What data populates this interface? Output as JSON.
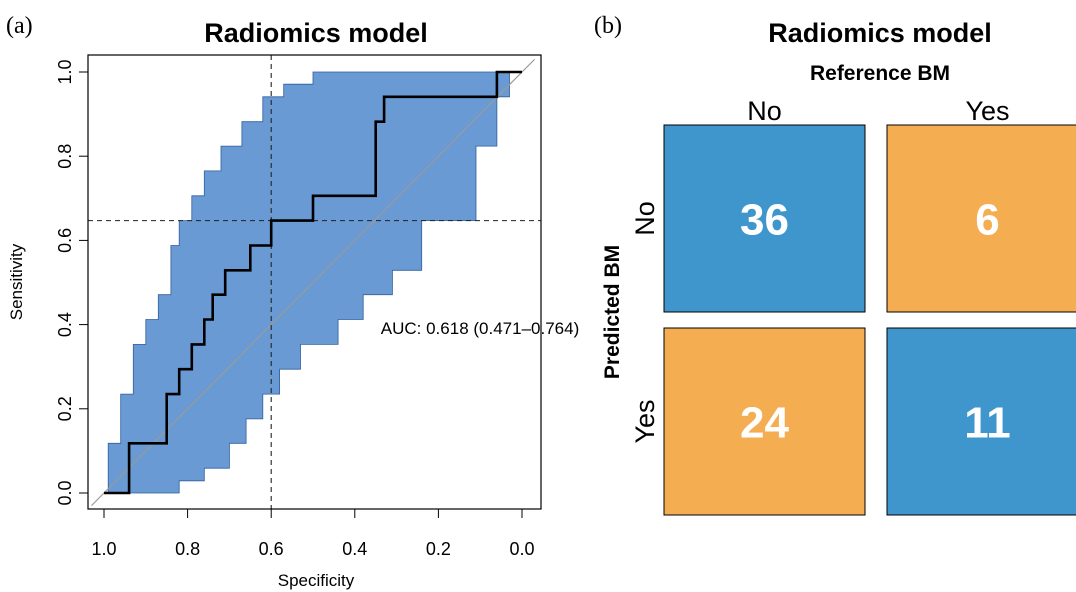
{
  "panel_labels": {
    "a": "(a)",
    "b": "(b)"
  },
  "colors": {
    "roc_band": "#6a9ad3",
    "roc_band_edge": "#2f5f9e",
    "cm_correct": "#3f96cd",
    "cm_incorrect": "#f5ad52"
  },
  "chart_data": [
    {
      "type": "line",
      "title": "Radiomics model",
      "xlabel": "Specificity",
      "ylabel": "Sensitivity",
      "x_reversed": true,
      "xlim": [
        1.0,
        0.0
      ],
      "ylim": [
        0.0,
        1.0
      ],
      "x_ticks": [
        "1.0",
        "0.8",
        "0.6",
        "0.4",
        "0.2",
        "0.0"
      ],
      "y_ticks": [
        "0.0",
        "0.2",
        "0.4",
        "0.6",
        "0.8",
        "1.0"
      ],
      "annotation": "AUC: 0.618 (0.471–0.764)",
      "threshold": {
        "specificity": 0.6,
        "sensitivity": 0.647
      },
      "diagonal": true,
      "roc_curve": {
        "specificity": [
          1.0,
          0.94,
          0.94,
          0.85,
          0.85,
          0.82,
          0.82,
          0.79,
          0.79,
          0.76,
          0.76,
          0.74,
          0.74,
          0.71,
          0.71,
          0.65,
          0.65,
          0.6,
          0.6,
          0.5,
          0.5,
          0.35,
          0.35,
          0.33,
          0.33,
          0.06,
          0.06,
          0.0
        ],
        "sensitivity": [
          0.0,
          0.0,
          0.118,
          0.118,
          0.235,
          0.235,
          0.294,
          0.294,
          0.353,
          0.353,
          0.412,
          0.412,
          0.471,
          0.471,
          0.529,
          0.529,
          0.588,
          0.588,
          0.647,
          0.647,
          0.706,
          0.706,
          0.882,
          0.882,
          0.941,
          0.941,
          1.0,
          1.0
        ]
      },
      "ci_upper": {
        "specificity": [
          0.99,
          0.99,
          0.96,
          0.96,
          0.93,
          0.93,
          0.9,
          0.9,
          0.87,
          0.87,
          0.84,
          0.84,
          0.82,
          0.82,
          0.79,
          0.79,
          0.76,
          0.76,
          0.72,
          0.72,
          0.67,
          0.67,
          0.62,
          0.62,
          0.57,
          0.57,
          0.5,
          0.5,
          0.42,
          0.42,
          0.38,
          0.38,
          0.31,
          0.31,
          0.2,
          0.2,
          0.12,
          0.12,
          0.0
        ],
        "sensitivity": [
          0.0,
          0.118,
          0.118,
          0.235,
          0.235,
          0.353,
          0.353,
          0.412,
          0.412,
          0.471,
          0.471,
          0.588,
          0.588,
          0.647,
          0.647,
          0.706,
          0.706,
          0.765,
          0.765,
          0.824,
          0.824,
          0.882,
          0.882,
          0.941,
          0.941,
          0.971,
          0.971,
          1.0,
          1.0,
          1.0,
          1.0,
          1.0,
          1.0,
          1.0,
          1.0,
          1.0,
          1.0,
          1.0,
          1.0
        ]
      },
      "ci_lower": {
        "specificity": [
          0.0,
          0.03,
          0.03,
          0.06,
          0.06,
          0.11,
          0.11,
          0.24,
          0.24,
          0.31,
          0.31,
          0.38,
          0.38,
          0.44,
          0.44,
          0.53,
          0.53,
          0.58,
          0.58,
          0.62,
          0.62,
          0.66,
          0.66,
          0.7,
          0.7,
          0.76,
          0.76,
          0.82,
          0.82,
          1.0
        ],
        "sensitivity": [
          1.0,
          1.0,
          0.941,
          0.941,
          0.824,
          0.824,
          0.647,
          0.647,
          0.529,
          0.529,
          0.471,
          0.471,
          0.412,
          0.412,
          0.353,
          0.353,
          0.294,
          0.294,
          0.235,
          0.235,
          0.176,
          0.176,
          0.118,
          0.118,
          0.059,
          0.059,
          0.029,
          0.029,
          0.0,
          0.0
        ]
      }
    },
    {
      "type": "heatmap",
      "title": "Radiomics model",
      "xlabel": "Reference BM",
      "ylabel": "Predicted BM",
      "x_categories": [
        "No",
        "Yes"
      ],
      "y_categories": [
        "No",
        "Yes"
      ],
      "values": [
        [
          36,
          6
        ],
        [
          24,
          11
        ]
      ]
    }
  ]
}
